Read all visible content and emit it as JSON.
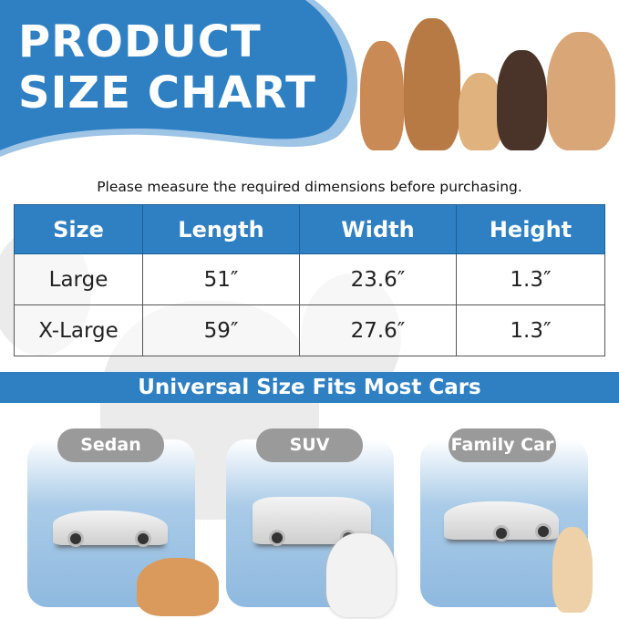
{
  "header": {
    "title_line1": "PRODUCT",
    "title_line2": "SIZE CHART"
  },
  "note": "Please measure the required dimensions before purchasing.",
  "table": {
    "columns": [
      "Size",
      "Length",
      "Width",
      "Height"
    ],
    "rows": [
      [
        "Large",
        "51″",
        "23.6″",
        "1.3″"
      ],
      [
        "X-Large",
        "59″",
        "27.6″",
        "1.3″"
      ]
    ]
  },
  "banner": "Universal Size Fits Most Cars",
  "cars": [
    {
      "label": "Sedan"
    },
    {
      "label": "SUV"
    },
    {
      "label": "Family Car"
    }
  ],
  "colors": {
    "accent": "#2f80c3",
    "pill": "#9a9a9a"
  }
}
